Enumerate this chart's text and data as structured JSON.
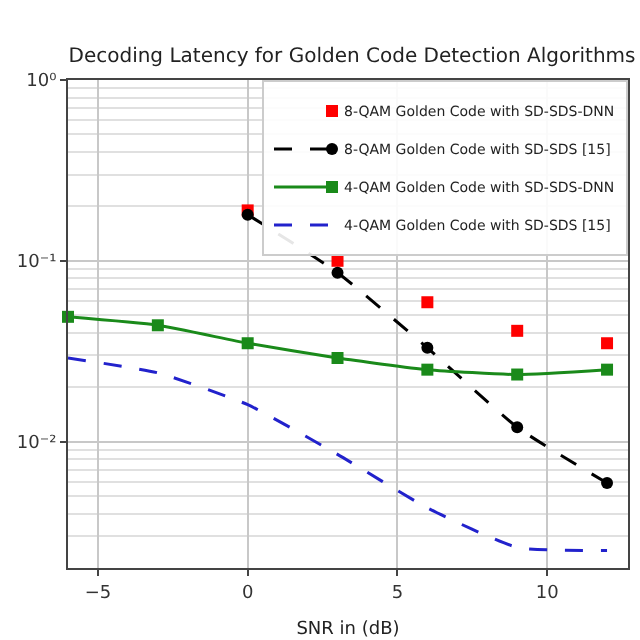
{
  "chart_data": {
    "type": "line",
    "title": "Decoding Latency for Golden Code Detection Algorithms",
    "xlabel": "SNR in (dB)",
    "x": [
      -6,
      -3,
      0,
      3,
      6,
      9,
      12
    ],
    "series": [
      {
        "name": "8-QAM Golden Code with SD-SDS-DNN",
        "type": "scatter",
        "color": "#ff0000",
        "marker": "square",
        "x": [
          0,
          3,
          6,
          9,
          12
        ],
        "values": [
          0.19,
          0.1,
          0.059,
          0.041,
          0.035
        ]
      },
      {
        "name": "8-QAM Golden Code with SD-SDS [15]",
        "color": "#000000",
        "marker": "circle",
        "line_style": "dashed",
        "x": [
          0,
          3,
          6,
          9,
          12
        ],
        "values": [
          0.18,
          0.086,
          0.033,
          0.012,
          0.0059
        ]
      },
      {
        "name": "4-QAM Golden Code with SD-SDS-DNN",
        "color": "#1a8a1a",
        "marker": "square",
        "line_style": "solid",
        "values": [
          0.049,
          0.044,
          0.035,
          0.029,
          0.025,
          0.0235,
          0.025
        ]
      },
      {
        "name": "4-QAM Golden Code with SD-SDS [15]",
        "color": "#2222cc",
        "marker": "none",
        "line_style": "dashed",
        "values": [
          0.029,
          0.024,
          0.016,
          0.0085,
          0.0043,
          0.0026,
          0.0025
        ]
      }
    ],
    "log": "y",
    "xlim": [
      -6,
      12.7
    ],
    "ylim": [
      0.002,
      1
    ],
    "xticks": [
      {
        "value": -5,
        "label": "−5"
      },
      0,
      5,
      10
    ],
    "yticks": [
      {
        "value": 1,
        "label": "10⁰"
      },
      {
        "value": 0.1,
        "label": "10⁻¹"
      },
      {
        "value": 0.01,
        "label": "10⁻²"
      }
    ],
    "grid": true,
    "legend": "top right"
  }
}
